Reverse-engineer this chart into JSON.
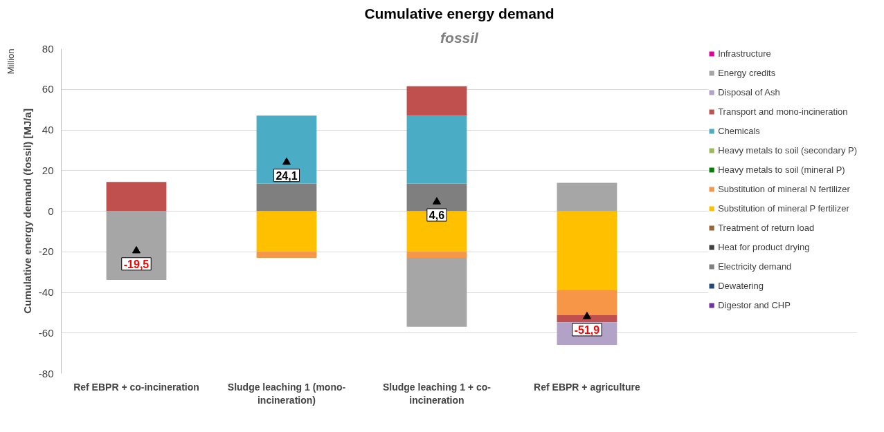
{
  "chart_data": {
    "type": "bar",
    "stacked": true,
    "title": "Cumulative energy demand",
    "subtitle": "fossil",
    "ylabel": "Cumulative energy demand (fossil) [MJ/a]",
    "annotations": [
      "Million"
    ],
    "categories": [
      "Ref EBPR + co-incineration",
      "Sludge leaching 1 (mono-incineration)",
      "Sludge leaching 1 + co-incineration",
      "Ref EBPR + agriculture"
    ],
    "ylim": [
      -80,
      80
    ],
    "yticks": [
      -80,
      -60,
      -40,
      -20,
      0,
      20,
      40,
      60,
      80
    ],
    "grid": "y",
    "legend": "right",
    "series": [
      {
        "name": "Digestor and CHP",
        "color": "#7030a0",
        "values": [
          null,
          null,
          null,
          null
        ]
      },
      {
        "name": "Dewatering",
        "color": "#1f497d",
        "values": [
          null,
          null,
          null,
          null
        ]
      },
      {
        "name": "Electricity demand",
        "color": "#7f7f7f",
        "values": [
          null,
          13.6,
          13.6,
          null
        ]
      },
      {
        "name": "Heat for product drying",
        "color": "#404040",
        "values": [
          null,
          null,
          null,
          null
        ]
      },
      {
        "name": "Treatment of return load",
        "color": "#996633",
        "values": [
          null,
          null,
          null,
          null
        ]
      },
      {
        "name": "Substitution of mineral P fertilizer",
        "color": "#ffc000",
        "values": [
          null,
          -20,
          -20,
          -39
        ]
      },
      {
        "name": "Substitution of mineral N fertilizer",
        "color": "#f79646",
        "values": [
          null,
          -3,
          -3,
          -12.2
        ]
      },
      {
        "name": "Heavy metals to soil (mineral P)",
        "color": "#008000",
        "values": [
          null,
          null,
          null,
          null
        ]
      },
      {
        "name": "Heavy metals to soil (secondary P)",
        "color": "#9bbb59",
        "values": [
          null,
          null,
          null,
          null
        ]
      },
      {
        "name": "Chemicals",
        "color": "#4bacc6",
        "values": [
          null,
          33.5,
          33.5,
          null
        ]
      },
      {
        "name": "Transport and mono-incineration",
        "color": "#c0504d",
        "values": [
          14.4,
          null,
          14.4,
          -3.5
        ]
      },
      {
        "name": "Disposal of Ash",
        "color": "#b3a2c7",
        "values": [
          null,
          null,
          null,
          -11.2
        ]
      },
      {
        "name": "Energy credits",
        "color": "#a6a6a6",
        "values": [
          -33.9,
          null,
          -33.9,
          14
        ]
      },
      {
        "name": "Infrastructure",
        "color": "#e0009c",
        "values": [
          null,
          null,
          null,
          null
        ]
      },
      {
        "type": "scatter",
        "marker": "triangle",
        "color": "#000000",
        "x": [
          "Ref EBPR + co-incineration",
          "Sludge leaching 1 (mono-incineration)",
          "Sludge leaching 1 + co-incineration",
          "Ref EBPR + agriculture"
        ],
        "values": [
          -19.5,
          24.1,
          4.6,
          -51.9
        ],
        "value_labels": [
          "-19,5",
          "24,1",
          "4,6",
          "-51,9"
        ]
      }
    ]
  }
}
